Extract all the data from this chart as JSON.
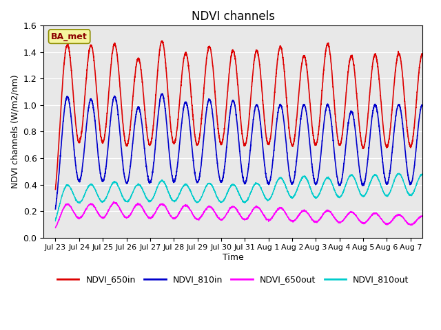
{
  "title": "NDVI channels",
  "xlabel": "Time",
  "ylabel": "NDVI channels (W/m2/nm)",
  "ylim": [
    0.0,
    1.6
  ],
  "label_text": "BA_met",
  "lines": {
    "NDVI_650in": {
      "color": "#dd0000",
      "lw": 1.2
    },
    "NDVI_810in": {
      "color": "#0000cc",
      "lw": 1.2
    },
    "NDVI_650out": {
      "color": "#ff00ff",
      "lw": 1.0
    },
    "NDVI_810out": {
      "color": "#00cccc",
      "lw": 1.0
    }
  },
  "xtick_labels": [
    "Jul 23",
    "Jul 24",
    "Jul 25",
    "Jul 26",
    "Jul 27",
    "Jul 28",
    "Jul 29",
    "Jul 30",
    "Jul 31",
    "Aug 1",
    "Aug 2",
    "Aug 3",
    "Aug 4",
    "Aug 5",
    "Aug 6",
    "Aug 7"
  ],
  "ytick_vals": [
    0.0,
    0.2,
    0.4,
    0.6,
    0.8,
    1.0,
    1.2,
    1.4,
    1.6
  ],
  "bg_color": "#e8e8e8",
  "fig_bg": "#ffffff",
  "n_days": 16,
  "points_per_day": 200,
  "peak_650in": [
    1.45,
    1.44,
    1.45,
    1.34,
    1.47,
    1.38,
    1.43,
    1.4,
    1.4,
    1.43,
    1.36,
    1.45,
    1.36,
    1.37,
    1.38,
    1.38
  ],
  "peak_810in": [
    1.06,
    1.04,
    1.06,
    0.98,
    1.08,
    1.02,
    1.04,
    1.03,
    1.0,
    1.0,
    1.0,
    1.0,
    0.95,
    1.0,
    1.0,
    1.0
  ],
  "peak_650out": [
    0.25,
    0.25,
    0.26,
    0.25,
    0.25,
    0.24,
    0.23,
    0.23,
    0.23,
    0.22,
    0.2,
    0.2,
    0.19,
    0.18,
    0.17,
    0.16
  ],
  "peak_810out": [
    0.39,
    0.39,
    0.41,
    0.39,
    0.42,
    0.39,
    0.4,
    0.39,
    0.4,
    0.44,
    0.45,
    0.44,
    0.46,
    0.46,
    0.47,
    0.47
  ]
}
